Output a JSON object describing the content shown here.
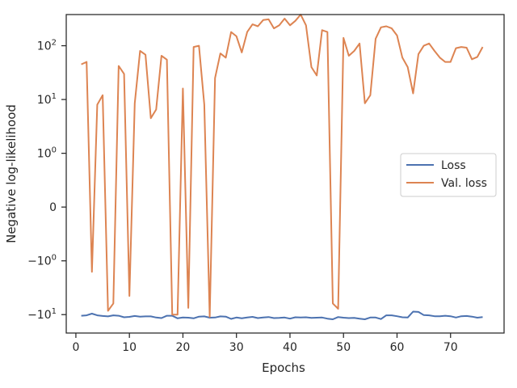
{
  "chart_data": {
    "type": "line",
    "xlabel": "Epochs",
    "ylabel": "Negative log-likelihood",
    "yscale": "symlog",
    "xlim": [
      -1.8,
      80
    ],
    "ylim": [
      -22,
      380
    ],
    "xticks": [
      {
        "value": 0,
        "label": "0"
      },
      {
        "value": 10,
        "label": "10"
      },
      {
        "value": 20,
        "label": "20"
      },
      {
        "value": 30,
        "label": "30"
      },
      {
        "value": 40,
        "label": "40"
      },
      {
        "value": 50,
        "label": "50"
      },
      {
        "value": 60,
        "label": "60"
      },
      {
        "value": 70,
        "label": "70"
      }
    ],
    "yticks": [
      {
        "value": 100,
        "label": "10",
        "sup": "2"
      },
      {
        "value": 10,
        "label": "10",
        "sup": "1"
      },
      {
        "value": 1,
        "label": "10",
        "sup": "0"
      },
      {
        "value": 0,
        "label": "0",
        "sup": ""
      },
      {
        "value": -1,
        "label": "−10",
        "sup": "0"
      },
      {
        "value": -10,
        "label": "−10",
        "sup": "1"
      }
    ],
    "grid": false,
    "legend": {
      "placement": "center-right"
    },
    "series": [
      {
        "name": "Loss",
        "color": "#4c72b0",
        "x": [
          1,
          2,
          3,
          4,
          5,
          6,
          7,
          8,
          9,
          10,
          11,
          12,
          13,
          14,
          15,
          16,
          17,
          18,
          19,
          20,
          21,
          22,
          23,
          24,
          25,
          26,
          27,
          28,
          29,
          30,
          31,
          32,
          33,
          34,
          35,
          36,
          37,
          38,
          39,
          40,
          41,
          42,
          43,
          44,
          45,
          46,
          47,
          48,
          49,
          50,
          51,
          52,
          53,
          54,
          55,
          56,
          57,
          58,
          59,
          60,
          61,
          62,
          63,
          64,
          65,
          66,
          67,
          68,
          69,
          70,
          71,
          72,
          73,
          74,
          75,
          76
        ],
        "y": [
          -10.5,
          -10.3,
          -9.6,
          -10.3,
          -10.6,
          -10.8,
          -10.3,
          -10.5,
          -11.2,
          -11.0,
          -10.6,
          -10.9,
          -10.8,
          -10.8,
          -11.3,
          -11.6,
          -10.5,
          -10.5,
          -11.7,
          -11.3,
          -11.4,
          -11.7,
          -10.9,
          -10.8,
          -11.4,
          -11.3,
          -10.8,
          -10.9,
          -12.0,
          -11.3,
          -11.7,
          -11.3,
          -11.0,
          -11.6,
          -11.3,
          -11.1,
          -11.6,
          -11.5,
          -11.3,
          -11.9,
          -11.2,
          -11.3,
          -11.2,
          -11.5,
          -11.4,
          -11.3,
          -11.9,
          -12.2,
          -11.1,
          -11.4,
          -11.6,
          -11.5,
          -11.9,
          -12.2,
          -11.3,
          -11.3,
          -12.1,
          -10.3,
          -10.3,
          -10.7,
          -11.2,
          -11.3,
          -8.8,
          -8.9,
          -10.2,
          -10.3,
          -10.7,
          -10.7,
          -10.5,
          -10.7,
          -11.3,
          -10.7,
          -10.6,
          -10.9,
          -11.4,
          -11.1
        ]
      },
      {
        "name": "Val. loss",
        "color": "#dd8452",
        "x": [
          1,
          2,
          3,
          4,
          5,
          6,
          7,
          8,
          9,
          10,
          11,
          12,
          13,
          14,
          15,
          16,
          17,
          18,
          19,
          20,
          21,
          22,
          23,
          24,
          25,
          26,
          27,
          28,
          29,
          30,
          31,
          32,
          33,
          34,
          35,
          36,
          37,
          38,
          39,
          40,
          41,
          42,
          43,
          44,
          45,
          46,
          47,
          48,
          49,
          50,
          51,
          52,
          53,
          54,
          55,
          56,
          57,
          58,
          59,
          60,
          61,
          62,
          63,
          64,
          65,
          66,
          67,
          68,
          69,
          70,
          71,
          72,
          73,
          74,
          75,
          76
        ],
        "y": [
          45,
          50,
          -1.6,
          8,
          12,
          -8.5,
          -6.2,
          42,
          30,
          -4.5,
          8.5,
          80,
          68,
          4.5,
          6.5,
          65,
          55,
          -10,
          -10,
          16,
          -7.5,
          95,
          100,
          8,
          -11,
          25,
          72,
          60,
          180,
          150,
          75,
          180,
          250,
          230,
          300,
          310,
          210,
          240,
          320,
          240,
          290,
          380,
          240,
          40,
          28,
          195,
          180,
          -6.2,
          -7.8,
          140,
          65,
          80,
          110,
          8.5,
          12,
          135,
          220,
          230,
          210,
          155,
          60,
          40,
          13,
          70,
          100,
          110,
          80,
          60,
          50,
          50,
          90,
          95,
          92,
          56,
          62,
          95
        ]
      }
    ]
  }
}
